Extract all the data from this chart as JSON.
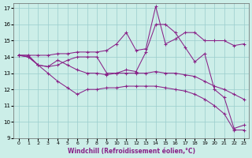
{
  "xlabel": "Windchill (Refroidissement éolien,°C)",
  "xlim": [
    -0.5,
    23.5
  ],
  "ylim": [
    9,
    17.3
  ],
  "yticks": [
    9,
    10,
    11,
    12,
    13,
    14,
    15,
    16,
    17
  ],
  "xticks": [
    0,
    1,
    2,
    3,
    4,
    5,
    6,
    7,
    8,
    9,
    10,
    11,
    12,
    13,
    14,
    15,
    16,
    17,
    18,
    19,
    20,
    21,
    22,
    23
  ],
  "bg_color": "#cceee8",
  "line_color": "#882288",
  "grid_color": "#99cccc",
  "lines": [
    [
      14.1,
      14.1,
      14.1,
      14.1,
      14.2,
      14.2,
      14.3,
      14.3,
      14.3,
      14.4,
      14.8,
      15.5,
      14.4,
      14.5,
      17.1,
      14.8,
      15.1,
      15.5,
      15.5,
      15.0,
      15.0,
      15.0,
      14.7,
      14.8
    ],
    [
      14.1,
      14.1,
      13.5,
      13.4,
      13.5,
      13.8,
      14.0,
      14.0,
      14.0,
      13.0,
      13.0,
      13.2,
      13.1,
      14.3,
      16.0,
      16.0,
      15.5,
      14.6,
      13.7,
      14.2,
      12.0,
      11.5,
      9.6,
      9.8
    ],
    [
      14.1,
      14.0,
      13.5,
      13.4,
      13.8,
      13.5,
      13.2,
      13.0,
      13.0,
      12.9,
      13.0,
      13.0,
      13.0,
      13.0,
      13.1,
      13.0,
      13.0,
      12.9,
      12.8,
      12.5,
      12.2,
      12.0,
      11.7,
      11.4
    ],
    [
      14.1,
      14.0,
      13.5,
      13.0,
      12.5,
      12.1,
      11.7,
      12.0,
      12.0,
      12.1,
      12.1,
      12.2,
      12.2,
      12.2,
      12.2,
      12.1,
      12.0,
      11.9,
      11.7,
      11.4,
      11.0,
      10.5,
      9.5,
      9.5
    ]
  ]
}
